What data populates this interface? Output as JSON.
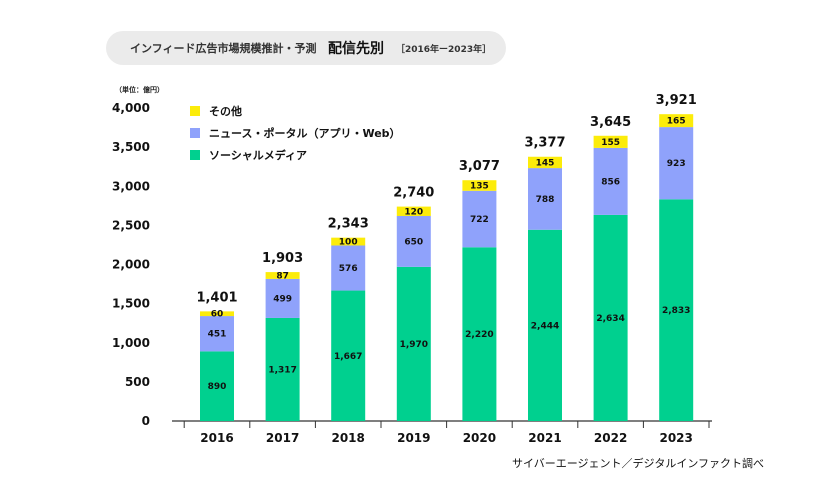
{
  "header": {
    "subtitle": "インフィード広告市場規模推計・予測",
    "title": "配信先別",
    "range": "［2016年ー2023年］"
  },
  "unit_label": "（単位：億円）",
  "source": "サイバーエージェント／デジタルインファクト調べ",
  "colors": {
    "social": "#00d08f",
    "news": "#8fa2fb",
    "other": "#fcec0a",
    "axis": "#333333"
  },
  "chart_data": {
    "type": "bar",
    "stacked": true,
    "categories": [
      "2016",
      "2017",
      "2018",
      "2019",
      "2020",
      "2021",
      "2022",
      "2023"
    ],
    "series": [
      {
        "name": "ソーシャルメディア",
        "values": [
          890,
          1317,
          1667,
          1970,
          2220,
          2444,
          2634,
          2833
        ]
      },
      {
        "name": "ニュース・ポータル（アプリ・Web）",
        "values": [
          451,
          499,
          576,
          650,
          722,
          788,
          856,
          923
        ]
      },
      {
        "name": "その他",
        "values": [
          60,
          87,
          100,
          120,
          135,
          145,
          155,
          165
        ]
      }
    ],
    "totals": [
      "1,401",
      "1,903",
      "2,343",
      "2,740",
      "3,077",
      "3,377",
      "3,645",
      "3,921"
    ],
    "value_labels": [
      [
        "890",
        "1,317",
        "1,667",
        "1,970",
        "2,220",
        "2,444",
        "2,634",
        "2,833"
      ],
      [
        "451",
        "499",
        "576",
        "650",
        "722",
        "788",
        "856",
        "923"
      ],
      [
        "60",
        "87",
        "100",
        "120",
        "135",
        "145",
        "155",
        "165"
      ]
    ],
    "y_ticks": [
      0,
      500,
      1000,
      1500,
      2000,
      2500,
      3000,
      3500,
      4000
    ],
    "y_tick_labels": [
      "0",
      "500",
      "1,000",
      "1,500",
      "2,000",
      "2,500",
      "3,000",
      "3,500",
      "4,000"
    ],
    "ylim": [
      0,
      4000
    ],
    "grid": false,
    "legend_position": "top-left",
    "legend_order": [
      2,
      1,
      0
    ]
  }
}
